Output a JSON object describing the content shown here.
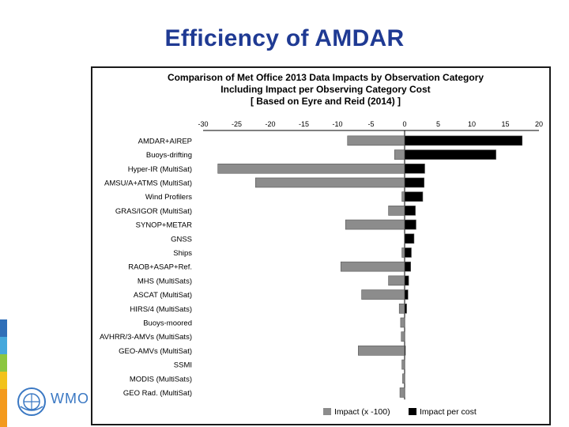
{
  "slide": {
    "title": "Efficiency of AMDAR",
    "logo_text": "WMO",
    "accent_colors": [
      "#2f6fb8",
      "#45a8dc",
      "#8cc63f",
      "#f2c21b",
      "#f39a1e"
    ]
  },
  "chart_data": {
    "type": "bar",
    "orientation": "horizontal",
    "title": "Comparison of Met Office 2013 Data Impacts by Observation Category",
    "subtitle": "Including Impact per Observing Category Cost",
    "subtitle2": "[ Based on Eyre and Reid (2014) ]",
    "xlim": [
      -30,
      20
    ],
    "xticks": [
      -30,
      -25,
      -20,
      -15,
      -10,
      -5,
      0,
      5,
      10,
      15,
      20
    ],
    "legend_position": "bottom",
    "grid": false,
    "categories": [
      "AMDAR+AIREP",
      "Buoys-drifting",
      "Hyper-IR (MultiSat)",
      "AMSU/A+ATMS (MultiSat)",
      "Wind Profilers",
      "GRAS/IGOR (MultiSat)",
      "SYNOP+METAR",
      "GNSS",
      "Ships",
      "RAOB+ASAP+Ref.",
      "MHS (MultiSats)",
      "ASCAT (MultiSat)",
      "HIRS/4 (MultiSats)",
      "Buoys-moored",
      "AVHRR/3-AMVs (MultiSats)",
      "GEO-AMVs (MultiSat)",
      "SSMI",
      "MODIS (MultiSats)",
      "GEO Rad. (MultiSat)"
    ],
    "series": [
      {
        "name": "Impact (x -100)",
        "color": "#8c8c8c",
        "values": [
          -8.5,
          -1.5,
          -27.8,
          -22.2,
          -0.4,
          -2.4,
          -8.8,
          0,
          -0.4,
          -9.5,
          -2.4,
          -6.4,
          -0.8,
          -0.6,
          -0.5,
          -6.9,
          -0.4,
          -0.3,
          -0.7
        ]
      },
      {
        "name": "Impact per cost",
        "color": "#000000",
        "values": [
          17.5,
          13.6,
          3.0,
          2.9,
          2.7,
          1.6,
          1.7,
          1.4,
          1.0,
          0.9,
          0.6,
          0.5,
          0.3,
          0,
          0,
          0.1,
          0,
          0,
          0
        ]
      }
    ]
  }
}
